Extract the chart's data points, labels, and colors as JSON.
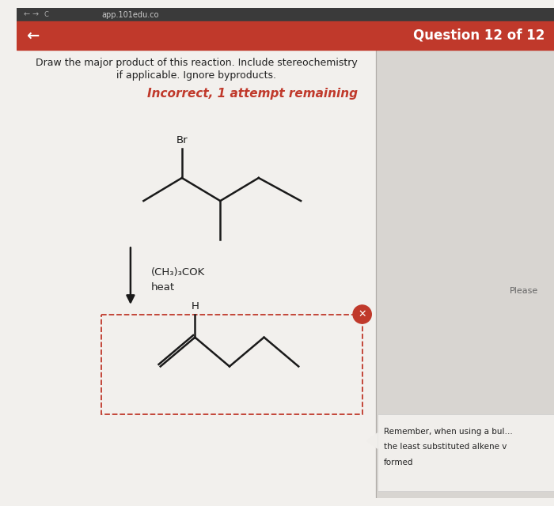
{
  "bg_top_bar": "#3a3a3a",
  "bg_red_bar": "#c0392b",
  "bg_white": "#f2f0ed",
  "bg_gray_right": "#d8d5d1",
  "mol_color": "#1a1a1a",
  "incorrect_color": "#c0392b",
  "text_color": "#222222",
  "header_text": "Question 12 of 12",
  "browser_url": "app.101edu.co",
  "title1": "Draw the major product of this reaction. Include stereochemistry",
  "title2": "if applicable. Ignore byproducts.",
  "incorrect": "Incorrect, 1 attempt remaining",
  "reagent1": "(CH₃)₃COK",
  "reagent2": "heat",
  "please": "Please",
  "rem1": "Remember, when using a bul…",
  "rem2": "the least substituted alkene v",
  "rem3": "formed"
}
